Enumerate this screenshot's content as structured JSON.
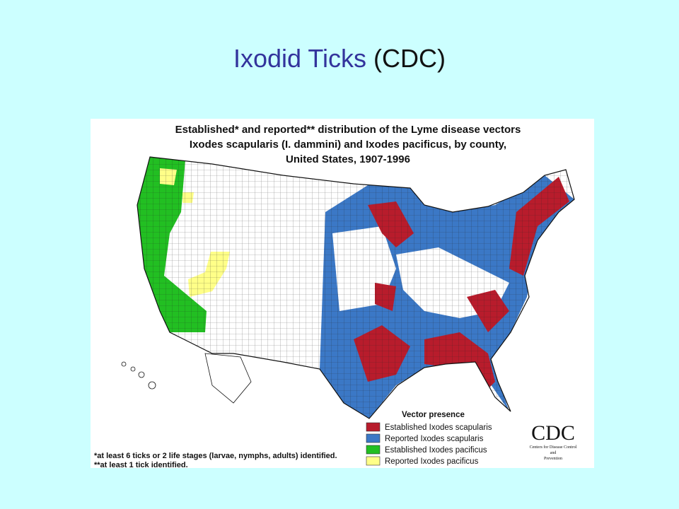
{
  "slide": {
    "title": "Ixodid Ticks",
    "title_source": "(CDC)"
  },
  "map": {
    "title_lines": [
      "Established* and reported** distribution of the Lyme disease vectors",
      "Ixodes scapularis (I. dammini) and Ixodes pacificus, by county,",
      "United States, 1907-1996"
    ],
    "legend": {
      "title": "Vector presence",
      "items": [
        {
          "label": "Established Ixodes scapularis",
          "color": "#b81c2c"
        },
        {
          "label": "Reported Ixodes scapularis",
          "color": "#3b78c6"
        },
        {
          "label": "Established Ixodes pacificus",
          "color": "#22bf22"
        },
        {
          "label": "Reported Ixodes pacificus",
          "color": "#ffff88"
        }
      ]
    },
    "footnotes": [
      "*at least 6 ticks or 2 life stages (larvae, nymphs, adults) identified.",
      "**at least 1 tick identified."
    ],
    "logo": {
      "name": "CDC",
      "lines": [
        "Centers for Disease Control",
        "and",
        "Prevention"
      ]
    }
  }
}
